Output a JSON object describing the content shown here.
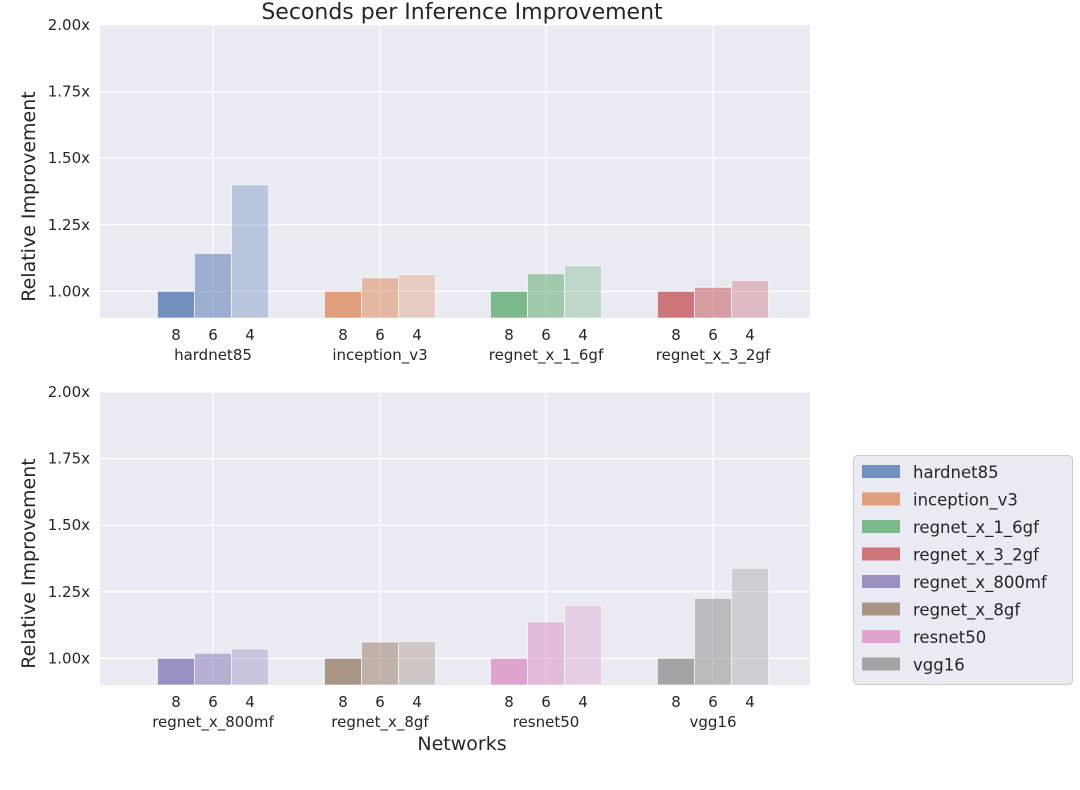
{
  "chart_data": {
    "type": "bar",
    "title": "Seconds per Inference Improvement",
    "xlabel": "Networks",
    "ylabel": "Relative Improvement",
    "ylim": [
      0.9,
      2.0
    ],
    "yticks": [
      "1.00x",
      "1.25x",
      "1.50x",
      "1.75x",
      "2.00x"
    ],
    "ytick_values": [
      1.0,
      1.25,
      1.5,
      1.75,
      2.0
    ],
    "bar_labels": [
      "8",
      "6",
      "4"
    ],
    "grid": true,
    "legend_placement": "right",
    "legend": [
      "hardnet85",
      "inception_v3",
      "regnet_x_1_6gf",
      "regnet_x_3_2gf",
      "regnet_x_800mf",
      "regnet_x_8gf",
      "resnet50",
      "vgg16"
    ],
    "colors": [
      "#4c72b0",
      "#dd8452",
      "#55a868",
      "#c44e52",
      "#8172b3",
      "#937860",
      "#da8bc3",
      "#8c8c8c"
    ],
    "panels": [
      {
        "categories": [
          "hardnet85",
          "inception_v3",
          "regnet_x_1_6gf",
          "regnet_x_3_2gf"
        ],
        "values": [
          [
            1.0,
            1.142,
            1.4
          ],
          [
            1.0,
            1.051,
            1.063
          ],
          [
            1.0,
            1.066,
            1.096
          ],
          [
            1.0,
            1.015,
            1.041
          ]
        ]
      },
      {
        "categories": [
          "regnet_x_800mf",
          "regnet_x_8gf",
          "resnet50",
          "vgg16"
        ],
        "values": [
          [
            1.0,
            1.019,
            1.035
          ],
          [
            1.0,
            1.061,
            1.063
          ],
          [
            1.0,
            1.137,
            1.199
          ],
          [
            1.0,
            1.225,
            1.338
          ]
        ]
      }
    ]
  }
}
